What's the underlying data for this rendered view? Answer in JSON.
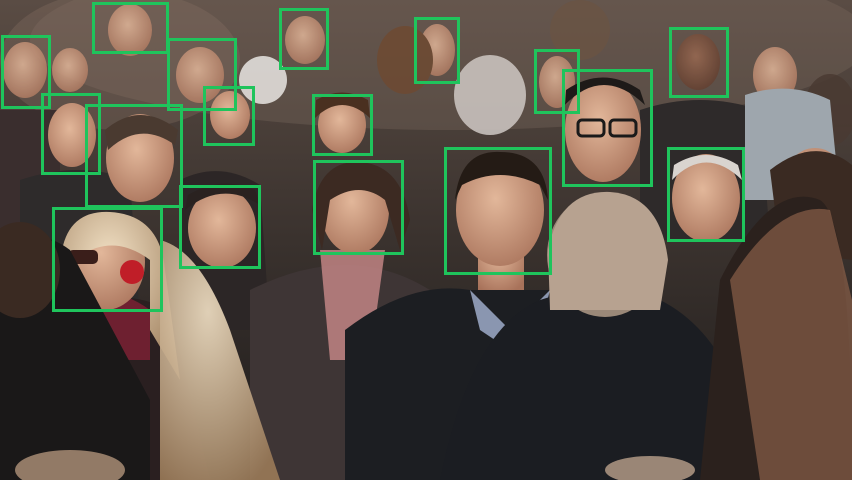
{
  "detection": {
    "box_color": "#1fc45c",
    "face_count": 20
  }
}
